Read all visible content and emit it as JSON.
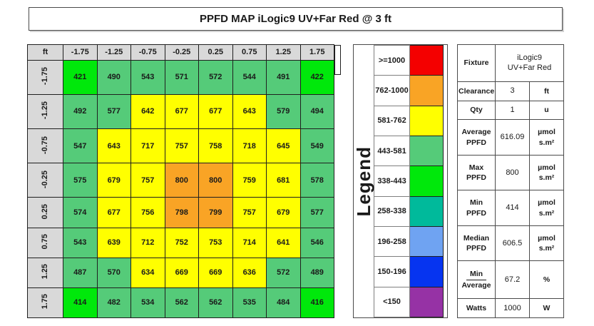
{
  "title": "PPFD MAP iLogic9 UV+Far Red @ 3 ft",
  "chart_data": {
    "type": "heatmap",
    "title": "PPFD MAP iLogic9 UV+Far Red @ 3 ft",
    "corner_label": "ft",
    "x_labels": [
      "-1.75",
      "-1.25",
      "-0.75",
      "-0.25",
      "0.25",
      "0.75",
      "1.25",
      "1.75"
    ],
    "y_labels": [
      "-1.75",
      "-1.25",
      "-0.75",
      "-0.25",
      "0.25",
      "0.75",
      "1.25",
      "1.75"
    ],
    "values": [
      [
        421,
        490,
        543,
        571,
        572,
        544,
        491,
        422
      ],
      [
        492,
        577,
        642,
        677,
        677,
        643,
        579,
        494
      ],
      [
        547,
        643,
        717,
        757,
        758,
        718,
        645,
        549
      ],
      [
        575,
        679,
        757,
        800,
        800,
        759,
        681,
        578
      ],
      [
        574,
        677,
        756,
        798,
        799,
        757,
        679,
        577
      ],
      [
        543,
        639,
        712,
        752,
        753,
        714,
        641,
        546
      ],
      [
        487,
        570,
        634,
        669,
        669,
        636,
        572,
        489
      ],
      [
        414,
        482,
        534,
        562,
        562,
        535,
        484,
        416
      ]
    ],
    "color_scale": [
      {
        "range": ">=1000",
        "min": 1000,
        "color": "#F40000"
      },
      {
        "range": "762-1000",
        "min": 762,
        "color": "#F9A425"
      },
      {
        "range": "581-762",
        "min": 581,
        "color": "#FFFF00"
      },
      {
        "range": "443-581",
        "min": 443,
        "color": "#55CB79"
      },
      {
        "range": "338-443",
        "min": 338,
        "color": "#00E80B"
      },
      {
        "range": "258-338",
        "min": 258,
        "color": "#00BA9B"
      },
      {
        "range": "196-258",
        "min": 196,
        "color": "#6FA3F2"
      },
      {
        "range": "150-196",
        "min": 150,
        "color": "#0634F0"
      },
      {
        "range": "<150",
        "min": 0,
        "color": "#9632A5"
      }
    ],
    "header_bg": "#D9D9D9"
  },
  "legend": {
    "title": "Legend"
  },
  "stats": {
    "rows": [
      {
        "label": "Fixture",
        "value": "iLogic9\nUV+Far Red",
        "unit": null,
        "merged": true
      },
      {
        "label": "Clearance",
        "value": "3",
        "unit": "ft"
      },
      {
        "label": "Qty",
        "value": "1",
        "unit": "u"
      },
      {
        "label": "Average\nPPFD",
        "value": "616.09",
        "unit": "µmol\ns.m²"
      },
      {
        "label": "Max\nPPFD",
        "value": "800",
        "unit": "µmol\ns.m²"
      },
      {
        "label": "Min\nPPFD",
        "value": "414",
        "unit": "µmol\ns.m²"
      },
      {
        "label": "Median\nPPFD",
        "value": "606.5",
        "unit": "µmol\ns.m²"
      },
      {
        "label_top": "Min",
        "label_bottom": "Average",
        "value": "67.2",
        "unit": "%",
        "fraction": true
      },
      {
        "label": "Watts",
        "value": "1000",
        "unit": "W"
      }
    ]
  }
}
